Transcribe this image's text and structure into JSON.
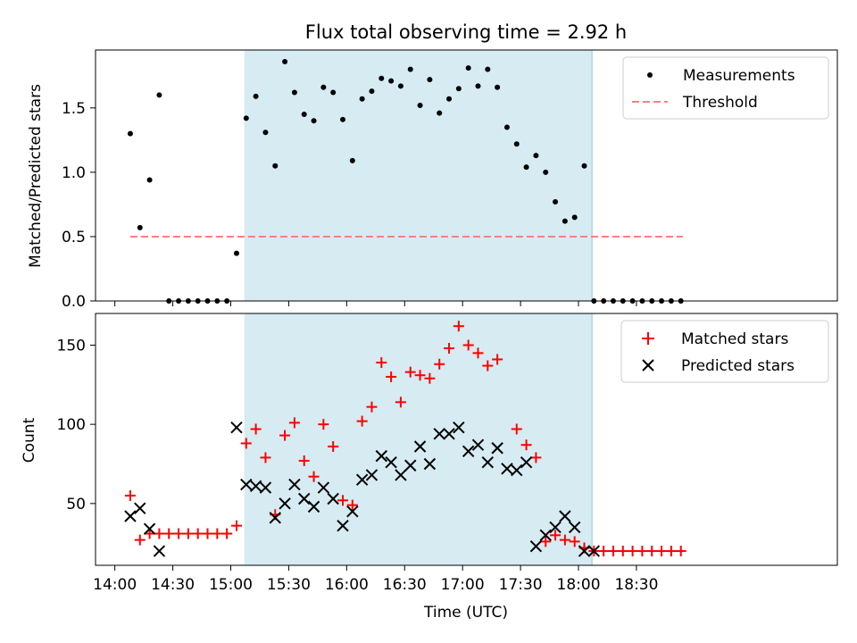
{
  "title": "Flux total observing time = 2.92 h",
  "colors": {
    "night": "#add8e6",
    "matched": "#ff0000",
    "predicted": "#000000",
    "threshold": "#ff7f7f",
    "measurement": "#000000"
  },
  "x_axis": {
    "label": "Time (UTC)",
    "ticks": [
      "14:00",
      "14:30",
      "15:00",
      "15:30",
      "16:00",
      "16:30",
      "17:00",
      "17:30",
      "18:00",
      "18:30"
    ],
    "tick_minutes": [
      840,
      870,
      900,
      930,
      960,
      990,
      1020,
      1050,
      1080,
      1110
    ],
    "range_minutes": [
      830,
      1214
    ]
  },
  "chart_data": [
    {
      "type": "scatter",
      "ylabel": "Matched/Predicted stars",
      "ylim": [
        0,
        1.95
      ],
      "yticks": [
        "0.0",
        "0.5",
        "1.0",
        "1.5"
      ],
      "ytick_values": [
        0,
        0.5,
        1.0,
        1.5
      ],
      "shaded_interval_minutes": [
        907,
        1087
      ],
      "legend": {
        "placement": "top-right",
        "measurements": "Measurements",
        "threshold": "Threshold"
      },
      "threshold": {
        "value": 0.5,
        "x_minutes": [
          848,
          1134
        ]
      },
      "series": [
        {
          "name": "Measurements",
          "x_minutes": [
            848,
            853,
            858,
            863,
            868,
            873,
            878,
            883,
            888,
            893,
            898,
            903,
            908,
            913,
            918,
            923,
            928,
            933,
            938,
            943,
            948,
            953,
            958,
            963,
            968,
            973,
            978,
            983,
            988,
            993,
            998,
            1003,
            1008,
            1013,
            1018,
            1023,
            1028,
            1033,
            1038,
            1043,
            1048,
            1053,
            1058,
            1063,
            1068,
            1073,
            1078,
            1083,
            1088,
            1093,
            1098,
            1103,
            1108,
            1113,
            1118,
            1123,
            1128,
            1133
          ],
          "values": [
            1.3,
            0.57,
            0.94,
            1.6,
            0,
            0,
            0,
            0,
            0,
            0,
            0,
            0.37,
            1.42,
            1.59,
            1.31,
            1.05,
            1.86,
            1.62,
            1.45,
            1.4,
            1.66,
            1.62,
            1.41,
            1.09,
            1.57,
            1.63,
            1.73,
            1.71,
            1.67,
            1.8,
            1.52,
            1.72,
            1.46,
            1.57,
            1.65,
            1.81,
            1.67,
            1.8,
            1.66,
            1.35,
            1.22,
            1.04,
            1.13,
            1.0,
            0.77,
            0.62,
            0.65,
            1.05,
            0,
            0,
            0,
            0,
            0,
            0,
            0,
            0,
            0,
            0
          ]
        }
      ]
    },
    {
      "type": "scatter",
      "ylabel": "Count",
      "ylim": [
        11,
        170
      ],
      "yticks": [
        "50",
        "100",
        "150"
      ],
      "ytick_values": [
        50,
        100,
        150
      ],
      "shaded_interval_minutes": [
        907,
        1087
      ],
      "legend": {
        "placement": "top-right",
        "matched": "Matched stars",
        "predicted": "Predicted stars"
      },
      "series": [
        {
          "name": "Matched stars",
          "x_minutes": [
            848,
            853,
            858,
            863,
            868,
            873,
            878,
            883,
            888,
            893,
            898,
            903,
            908,
            913,
            918,
            923,
            928,
            933,
            938,
            943,
            948,
            953,
            958,
            963,
            968,
            973,
            978,
            983,
            988,
            993,
            998,
            1003,
            1008,
            1013,
            1018,
            1023,
            1028,
            1033,
            1038,
            1043,
            1048,
            1053,
            1058,
            1063,
            1068,
            1073,
            1078,
            1083,
            1088,
            1093,
            1098,
            1103,
            1108,
            1113,
            1118,
            1123,
            1128,
            1133
          ],
          "values": [
            55,
            27,
            31,
            31,
            31,
            31,
            31,
            31,
            31,
            31,
            31,
            36,
            88,
            97,
            79,
            43,
            93,
            101,
            77,
            67,
            100,
            86,
            52,
            49,
            102,
            111,
            139,
            130,
            114,
            133,
            131,
            129,
            138,
            148,
            162,
            150,
            145,
            137,
            141,
            null,
            97,
            87,
            79,
            26,
            30,
            27,
            26,
            22,
            20,
            20,
            20,
            20,
            20,
            20,
            20,
            20,
            20,
            20
          ]
        },
        {
          "name": "Predicted stars",
          "x_minutes": [
            848,
            853,
            858,
            863,
            903,
            908,
            913,
            918,
            923,
            928,
            933,
            938,
            943,
            948,
            953,
            958,
            963,
            968,
            973,
            978,
            983,
            988,
            993,
            998,
            1003,
            1008,
            1013,
            1018,
            1023,
            1028,
            1033,
            1038,
            1043,
            1048,
            1053,
            1058,
            1063,
            1068,
            1073,
            1078,
            1083,
            1088
          ],
          "values": [
            42,
            47,
            34,
            20,
            98,
            62,
            61,
            60,
            41,
            50,
            62,
            53,
            48,
            60,
            53,
            36,
            45,
            65,
            68,
            80,
            76,
            68,
            74,
            86,
            75,
            94,
            94,
            98,
            83,
            87,
            76,
            85,
            72,
            71,
            76,
            23,
            30,
            35,
            42,
            35,
            20,
            20
          ]
        }
      ]
    }
  ]
}
